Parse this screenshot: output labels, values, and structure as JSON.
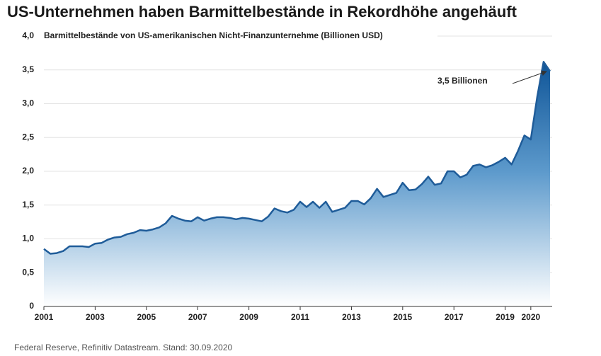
{
  "chart_data": {
    "type": "area",
    "title": "US-Unternehmen haben Barmittelbestände in Rekordhöhe angehäuft",
    "subtitle": "Barmittelbestände von US-amerikanischen Nicht-Finanzunternehme (Billionen USD)",
    "source": "Federal Reserve, Refinitiv Datastream. Stand: 30.09.2020",
    "annotation": "3,5 Billionen",
    "color": "#1f5c99",
    "x": [
      2001,
      2001.25,
      2001.5,
      2001.75,
      2002,
      2002.25,
      2002.5,
      2002.75,
      2003,
      2003.25,
      2003.5,
      2003.75,
      2004,
      2004.25,
      2004.5,
      2004.75,
      2005,
      2005.25,
      2005.5,
      2005.75,
      2006,
      2006.25,
      2006.5,
      2006.75,
      2007,
      2007.25,
      2007.5,
      2007.75,
      2008,
      2008.25,
      2008.5,
      2008.75,
      2009,
      2009.25,
      2009.5,
      2009.75,
      2010,
      2010.25,
      2010.5,
      2010.75,
      2011,
      2011.25,
      2011.5,
      2011.75,
      2012,
      2012.25,
      2012.5,
      2012.75,
      2013,
      2013.25,
      2013.5,
      2013.75,
      2014,
      2014.25,
      2014.5,
      2014.75,
      2015,
      2015.25,
      2015.5,
      2015.75,
      2016,
      2016.25,
      2016.5,
      2016.75,
      2017,
      2017.25,
      2017.5,
      2017.75,
      2018,
      2018.25,
      2018.5,
      2018.75,
      2019,
      2019.25,
      2019.5,
      2019.75,
      2020,
      2020.25,
      2020.5,
      2020.75
    ],
    "values": [
      0.85,
      0.78,
      0.79,
      0.82,
      0.89,
      0.89,
      0.89,
      0.88,
      0.93,
      0.94,
      0.99,
      1.02,
      1.03,
      1.07,
      1.09,
      1.13,
      1.12,
      1.14,
      1.17,
      1.23,
      1.34,
      1.3,
      1.27,
      1.26,
      1.32,
      1.27,
      1.3,
      1.32,
      1.32,
      1.31,
      1.29,
      1.31,
      1.3,
      1.28,
      1.26,
      1.33,
      1.45,
      1.41,
      1.39,
      1.43,
      1.55,
      1.47,
      1.55,
      1.46,
      1.55,
      1.4,
      1.43,
      1.46,
      1.56,
      1.56,
      1.51,
      1.6,
      1.74,
      1.62,
      1.65,
      1.68,
      1.83,
      1.72,
      1.73,
      1.81,
      1.92,
      1.8,
      1.82,
      2.0,
      2.0,
      1.91,
      1.95,
      2.08,
      2.1,
      2.06,
      2.09,
      2.14,
      2.2,
      2.1,
      2.3,
      2.53,
      2.47,
      3.1,
      3.62,
      3.48
    ],
    "xlim": [
      2001,
      2020.75
    ],
    "xticks": [
      2001,
      2003,
      2005,
      2007,
      2009,
      2011,
      2013,
      2015,
      2017,
      2019,
      2020
    ],
    "ylim": [
      0,
      4
    ],
    "yticks": [
      0,
      {
        "value": 0.5,
        "label": "0,5"
      },
      {
        "value": 1,
        "label": "1,0"
      },
      {
        "value": 1.5,
        "label": "1,5"
      },
      {
        "value": 2,
        "label": "2,0"
      },
      {
        "value": 2.5,
        "label": "2,5"
      },
      {
        "value": 3,
        "label": "3,0"
      },
      {
        "value": 3.5,
        "label": "3,5"
      },
      {
        "value": 4,
        "label": "4,0"
      }
    ],
    "grid": true
  }
}
